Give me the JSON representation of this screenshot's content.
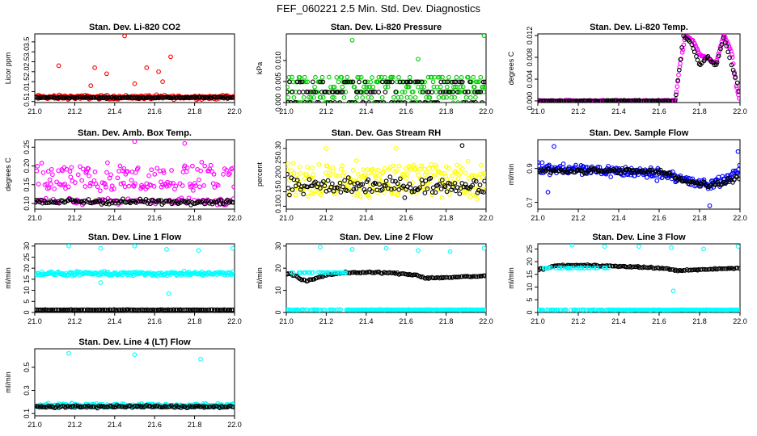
{
  "main_title": "FEF_060221  2.5 Min. Std. Dev. Diagnostics",
  "colors": {
    "red": "#ff0000",
    "green": "#00cc00",
    "magenta": "#ff00ff",
    "yellow": "#ffff00",
    "blue": "#0000ff",
    "cyan": "#00ffff",
    "black": "#000000"
  },
  "chart_data": [
    {
      "type": "scatter",
      "title": "Stan. Dev. Li-820 CO2",
      "ylabel": "Licor ppm",
      "xlim": [
        21.0,
        22.0
      ],
      "ylim": [
        0.45,
        3.9
      ],
      "x_ticks": [
        "21.0",
        "21.2",
        "21.4",
        "21.6",
        "21.8",
        "22.0"
      ],
      "y_ticks": [
        "0.5",
        "1.0",
        "1.5",
        "2.0",
        "2.5",
        "3.0",
        "3.5"
      ],
      "series": [
        {
          "name": "color",
          "color": "#ff0000",
          "base": 0.72,
          "noise": 0.15,
          "outliers": [
            [
              21.12,
              2.3
            ],
            [
              21.3,
              2.2
            ],
            [
              21.36,
              1.9
            ],
            [
              21.45,
              3.8
            ],
            [
              21.56,
              2.2
            ],
            [
              21.62,
              2.0
            ],
            [
              21.68,
              2.75
            ],
            [
              21.28,
              1.3
            ],
            [
              21.5,
              1.4
            ],
            [
              21.64,
              1.5
            ]
          ]
        },
        {
          "name": "black",
          "color": "#000000",
          "base": 0.7,
          "noise": 0.06,
          "outliers": []
        }
      ]
    },
    {
      "type": "scatter",
      "title": "Stan. Dev. Li-820 Pressure",
      "ylabel": "kPa",
      "xlim": [
        21.0,
        22.0
      ],
      "ylim": [
        0.0,
        0.0163
      ],
      "x_ticks": [
        "21.0",
        "21.2",
        "21.4",
        "21.6",
        "21.8",
        "22.0"
      ],
      "y_ticks": [
        "0.000",
        "0.005",
        "0.010"
      ],
      "series": [
        {
          "name": "color",
          "color": "#00cc00",
          "levels": [
            0.0,
            0.0012,
            0.0025,
            0.0037,
            0.0049,
            0.006
          ],
          "outliers": [
            [
              21.33,
              0.0148
            ],
            [
              21.66,
              0.0103
            ],
            [
              21.99,
              0.0159
            ]
          ]
        },
        {
          "name": "black",
          "color": "#000000",
          "levels": [
            0.0,
            0.0025,
            0.0049
          ],
          "outliers": []
        }
      ]
    },
    {
      "type": "scatter",
      "title": "Stan. Dev. Li-820 Temp.",
      "ylabel": "degrees C",
      "xlim": [
        21.0,
        22.0
      ],
      "ylim": [
        -0.0003,
        0.0123
      ],
      "x_ticks": [
        "21.0",
        "21.2",
        "21.4",
        "21.6",
        "21.8",
        "22.0"
      ],
      "y_ticks": [
        "0.000",
        "0.004",
        "0.008",
        "0.012"
      ],
      "series": [
        {
          "name": "color",
          "color": "#ff00ff",
          "profile": [
            [
              21.0,
              0.0
            ],
            [
              21.68,
              0.0
            ],
            [
              21.7,
              0.006
            ],
            [
              21.73,
              0.012
            ],
            [
              21.77,
              0.011
            ],
            [
              21.8,
              0.0085
            ],
            [
              21.84,
              0.0078
            ],
            [
              21.88,
              0.0068
            ],
            [
              21.92,
              0.0122
            ],
            [
              21.96,
              0.0088
            ],
            [
              21.98,
              0.003
            ],
            [
              22.0,
              0.0
            ]
          ]
        },
        {
          "name": "black",
          "color": "#000000",
          "profile": [
            [
              21.0,
              0.0
            ],
            [
              21.68,
              0.0
            ],
            [
              21.72,
              0.012
            ],
            [
              21.76,
              0.0105
            ],
            [
              21.8,
              0.0065
            ],
            [
              21.84,
              0.0082
            ],
            [
              21.88,
              0.0062
            ],
            [
              21.92,
              0.0118
            ],
            [
              21.96,
              0.0065
            ],
            [
              21.99,
              0.0028
            ],
            [
              22.0,
              0.0
            ]
          ]
        }
      ]
    },
    {
      "type": "scatter",
      "title": "Stan. Dev. Amb. Box Temp.",
      "ylabel": "degrees C",
      "xlim": [
        21.0,
        22.0
      ],
      "ylim": [
        0.085,
        0.27
      ],
      "x_ticks": [
        "21.0",
        "21.2",
        "21.4",
        "21.6",
        "21.8",
        "22.0"
      ],
      "y_ticks": [
        "0.10",
        "0.15",
        "0.20",
        "0.25"
      ],
      "series": [
        {
          "name": "color",
          "color": "#ff00ff",
          "bands": [
            [
              0.105,
              0.012
            ],
            [
              0.15,
              0.02
            ],
            [
              0.19,
              0.025
            ]
          ],
          "outliers": [
            [
              21.5,
              0.265
            ],
            [
              21.75,
              0.26
            ]
          ]
        },
        {
          "name": "black",
          "color": "#000000",
          "bands": [
            [
              0.105,
              0.01
            ]
          ],
          "outliers": []
        }
      ]
    },
    {
      "type": "scatter",
      "title": "Stan. Dev. Gas Stream RH",
      "ylabel": "percent",
      "xlim": [
        21.0,
        22.0
      ],
      "ylim": [
        0.09,
        0.33
      ],
      "x_ticks": [
        "21.0",
        "21.2",
        "21.4",
        "21.6",
        "21.8",
        "22.0"
      ],
      "y_ticks": [
        "0.10",
        "0.15",
        "0.20",
        "0.25",
        "0.30"
      ],
      "series": [
        {
          "name": "color",
          "color": "#ffff00",
          "bands": [
            [
              0.16,
              0.05
            ],
            [
              0.22,
              0.05
            ]
          ],
          "outliers": [
            [
              21.2,
              0.3
            ],
            [
              21.55,
              0.3
            ]
          ]
        },
        {
          "name": "black",
          "color": "#000000",
          "bands": [
            [
              0.17,
              0.045
            ]
          ],
          "outliers": [
            [
              21.88,
              0.31
            ]
          ]
        }
      ]
    },
    {
      "type": "scatter",
      "title": "Stan. Dev. Sample Flow",
      "ylabel": "ml/min",
      "xlim": [
        21.0,
        22.0
      ],
      "ylim": [
        0.66,
        1.07
      ],
      "x_ticks": [
        "21.0",
        "21.2",
        "21.4",
        "21.6",
        "21.8",
        "22.0"
      ],
      "y_ticks": [
        "0.7",
        "0.9"
      ],
      "series": [
        {
          "name": "color",
          "color": "#0000ff",
          "profile": [
            [
              21.0,
              0.9
            ],
            [
              21.3,
              0.89
            ],
            [
              21.6,
              0.87
            ],
            [
              21.68,
              0.86
            ],
            [
              21.75,
              0.82
            ],
            [
              21.85,
              0.8
            ],
            [
              21.95,
              0.85
            ],
            [
              22.0,
              0.88
            ]
          ],
          "noise": 0.05,
          "outliers": [
            [
              21.08,
              1.03
            ],
            [
              21.05,
              0.76
            ],
            [
              21.85,
              0.68
            ],
            [
              21.99,
              1.0
            ]
          ]
        },
        {
          "name": "black",
          "color": "#000000",
          "profile": [
            [
              21.0,
              0.89
            ],
            [
              21.6,
              0.88
            ],
            [
              21.75,
              0.82
            ],
            [
              21.85,
              0.8
            ],
            [
              22.0,
              0.85
            ]
          ],
          "noise": 0.025,
          "outliers": []
        }
      ]
    },
    {
      "type": "scatter",
      "title": "Stan. Dev. Line 1 Flow",
      "ylabel": "ml/min",
      "xlim": [
        21.0,
        22.0
      ],
      "ylim": [
        0.0,
        31.0
      ],
      "x_ticks": [
        "21.0",
        "21.2",
        "21.4",
        "21.6",
        "21.8",
        "22.0"
      ],
      "y_ticks": [
        "0",
        "5",
        "10",
        "15",
        "20",
        "25",
        "30"
      ],
      "series": [
        {
          "name": "color",
          "color": "#00ffff",
          "base": 17.5,
          "noise": 1.4,
          "outliers": [
            [
              21.17,
              30.0
            ],
            [
              21.33,
              29.0
            ],
            [
              21.5,
              30.0
            ],
            [
              21.66,
              28.5
            ],
            [
              21.82,
              28.0
            ],
            [
              21.99,
              29.0
            ],
            [
              21.67,
              8.5
            ],
            [
              21.33,
              13.5
            ]
          ]
        },
        {
          "name": "black",
          "color": "#000000",
          "base": 1.2,
          "noise": 0.15,
          "outliers": []
        }
      ]
    },
    {
      "type": "scatter",
      "title": "Stan. Dev. Line 2 Flow",
      "ylabel": "ml/min",
      "xlim": [
        21.0,
        22.0
      ],
      "ylim": [
        0.0,
        31.0
      ],
      "x_ticks": [
        "21.0",
        "21.2",
        "21.4",
        "21.6",
        "21.8",
        "22.0"
      ],
      "y_ticks": [
        "0",
        "10",
        "20",
        "30"
      ],
      "series": [
        {
          "name": "black",
          "color": "#000000",
          "profile": [
            [
              21.02,
              17.5
            ],
            [
              21.1,
              14.0
            ],
            [
              21.2,
              17.0
            ],
            [
              21.3,
              18.0
            ],
            [
              21.5,
              18.0
            ],
            [
              21.65,
              17.0
            ],
            [
              21.7,
              15.5
            ],
            [
              22.0,
              16.5
            ]
          ],
          "noise": 0.5,
          "outliers": []
        },
        {
          "name": "color",
          "color": "#00ffff",
          "base": 1.2,
          "noise": 0.15,
          "segment": [
            21.02,
            21.3
          ],
          "segmentBase": 18.0,
          "outliers": [
            [
              21.17,
              29.5
            ],
            [
              21.33,
              28.5
            ],
            [
              21.5,
              29.0
            ],
            [
              21.66,
              28.0
            ],
            [
              21.82,
              27.5
            ],
            [
              21.99,
              29.0
            ]
          ]
        }
      ]
    },
    {
      "type": "scatter",
      "title": "Stan. Dev. Line 3 Flow",
      "ylabel": "ml/min",
      "xlim": [
        21.0,
        22.0
      ],
      "ylim": [
        0.0,
        27.0
      ],
      "x_ticks": [
        "21.0",
        "21.2",
        "21.4",
        "21.6",
        "21.8",
        "22.0"
      ],
      "y_ticks": [
        "0",
        "5",
        "10",
        "15",
        "20",
        "25"
      ],
      "series": [
        {
          "name": "black",
          "color": "#000000",
          "profile": [
            [
              21.02,
              17.0
            ],
            [
              21.1,
              18.5
            ],
            [
              21.3,
              18.5
            ],
            [
              21.6,
              17.5
            ],
            [
              21.7,
              16.5
            ],
            [
              22.0,
              17.5
            ]
          ],
          "noise": 0.4,
          "outliers": []
        },
        {
          "name": "color",
          "color": "#00ffff",
          "base": 1.0,
          "noise": 0.15,
          "segment": [
            21.02,
            21.35
          ],
          "segmentBase": 17.5,
          "outliers": [
            [
              21.17,
              26.5
            ],
            [
              21.33,
              26.0
            ],
            [
              21.5,
              26.0
            ],
            [
              21.66,
              25.5
            ],
            [
              21.82,
              25.0
            ],
            [
              21.99,
              26.0
            ],
            [
              21.67,
              8.5
            ]
          ]
        }
      ]
    },
    {
      "type": "scatter",
      "title": "Stan. Dev. Line 4 (LT) Flow",
      "ylabel": "ml/min",
      "xlim": [
        21.0,
        22.0
      ],
      "ylim": [
        0.08,
        0.66
      ],
      "x_ticks": [
        "21.0",
        "21.2",
        "21.4",
        "21.6",
        "21.8",
        "22.0"
      ],
      "y_ticks": [
        "0.1",
        "0.3",
        "0.5"
      ],
      "series": [
        {
          "name": "color",
          "color": "#00ffff",
          "base": 0.17,
          "noise": 0.025,
          "outliers": [
            [
              21.17,
              0.62
            ],
            [
              21.5,
              0.61
            ],
            [
              21.83,
              0.57
            ]
          ]
        },
        {
          "name": "black",
          "color": "#000000",
          "base": 0.16,
          "noise": 0.015,
          "outliers": []
        }
      ]
    }
  ]
}
